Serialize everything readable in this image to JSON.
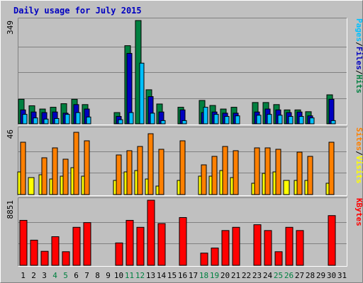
{
  "chart_data": {
    "type": "bar",
    "title": "Daily usage for July 2015",
    "days": [
      1,
      2,
      3,
      4,
      5,
      6,
      7,
      8,
      9,
      10,
      11,
      12,
      13,
      14,
      15,
      16,
      17,
      18,
      19,
      20,
      21,
      22,
      23,
      24,
      25,
      26,
      27,
      28,
      29,
      30,
      31
    ],
    "weekend_days": [
      4,
      5,
      11,
      12,
      18,
      19,
      25,
      26
    ],
    "panels": [
      {
        "max_label": "349",
        "ylim": [
          0,
          349
        ],
        "right_labels": [
          {
            "text": "Hits",
            "color": "#008040"
          },
          {
            "text": "Files",
            "color": "#0000c0"
          },
          {
            "text": "Pages",
            "color": "#00c0ff"
          }
        ],
        "series": [
          {
            "name": "Hits",
            "color": "#008040",
            "values": [
              83,
              61,
              50,
              56,
              68,
              83,
              65,
              0,
              0,
              38,
              264,
              349,
              115,
              67,
              0,
              56,
              0,
              79,
              62,
              50,
              56,
              0,
              72,
              72,
              65,
              47,
              47,
              41,
              0,
              98,
              0
            ]
          },
          {
            "name": "Files",
            "color": "#0000c0",
            "values": [
              47,
              40,
              38,
              40,
              36,
              65,
              50,
              0,
              0,
              25,
              238,
              0,
              92,
              40,
              0,
              47,
              0,
              38,
              40,
              36,
              36,
              0,
              40,
              50,
              47,
              38,
              40,
              27,
              0,
              83,
              0
            ]
          },
          {
            "name": "Pages",
            "color": "#00c0ff",
            "values": [
              32,
              20,
              16,
              18,
              32,
              38,
              23,
              0,
              0,
              14,
              38,
              205,
              36,
              11,
              0,
              11,
              0,
              56,
              32,
              25,
              27,
              0,
              29,
              32,
              29,
              25,
              25,
              20,
              0,
              11,
              0
            ]
          }
        ]
      },
      {
        "max_label": "46",
        "ylim": [
          0,
          46
        ],
        "right_labels": [
          {
            "text": "Visits",
            "color": "#ffff00"
          },
          {
            "text": "Sites",
            "color": "#ff8000"
          }
        ],
        "series": [
          {
            "name": "Visits",
            "color": "#ffff00",
            "values": [
              16,
              12,
              14,
              11,
              13,
              19,
              13,
              0,
              0,
              10,
              16,
              17,
              11,
              6,
              0,
              10,
              0,
              13,
              13,
              17,
              12,
              0,
              8,
              15,
              16,
              10,
              10,
              10,
              0,
              8,
              0
            ]
          },
          {
            "name": "Sites",
            "color": "#ff8000",
            "values": [
              37,
              0,
              26,
              33,
              25,
              44,
              38,
              0,
              0,
              28,
              31,
              34,
              43,
              32,
              0,
              38,
              0,
              21,
              27,
              34,
              31,
              0,
              33,
              33,
              32,
              0,
              30,
              27,
              0,
              37,
              0
            ]
          }
        ]
      },
      {
        "max_label": "8851",
        "ylim": [
          0,
          8851
        ],
        "right_labels": [
          {
            "text": "KBytes",
            "color": "#ff0000"
          }
        ],
        "series": [
          {
            "name": "KBytes",
            "color": "#ff0000",
            "values": [
              6115,
              3422,
              1906,
              3892,
              1850,
              5168,
              5810,
              0,
              0,
              3044,
              6115,
              5168,
              8851,
              5677,
              0,
              6497,
              0,
              1661,
              2351,
              4730,
              5168,
              0,
              5521,
              4730,
              1850,
              5168,
              4730,
              0,
              0,
              6761,
              0
            ]
          }
        ]
      }
    ]
  }
}
